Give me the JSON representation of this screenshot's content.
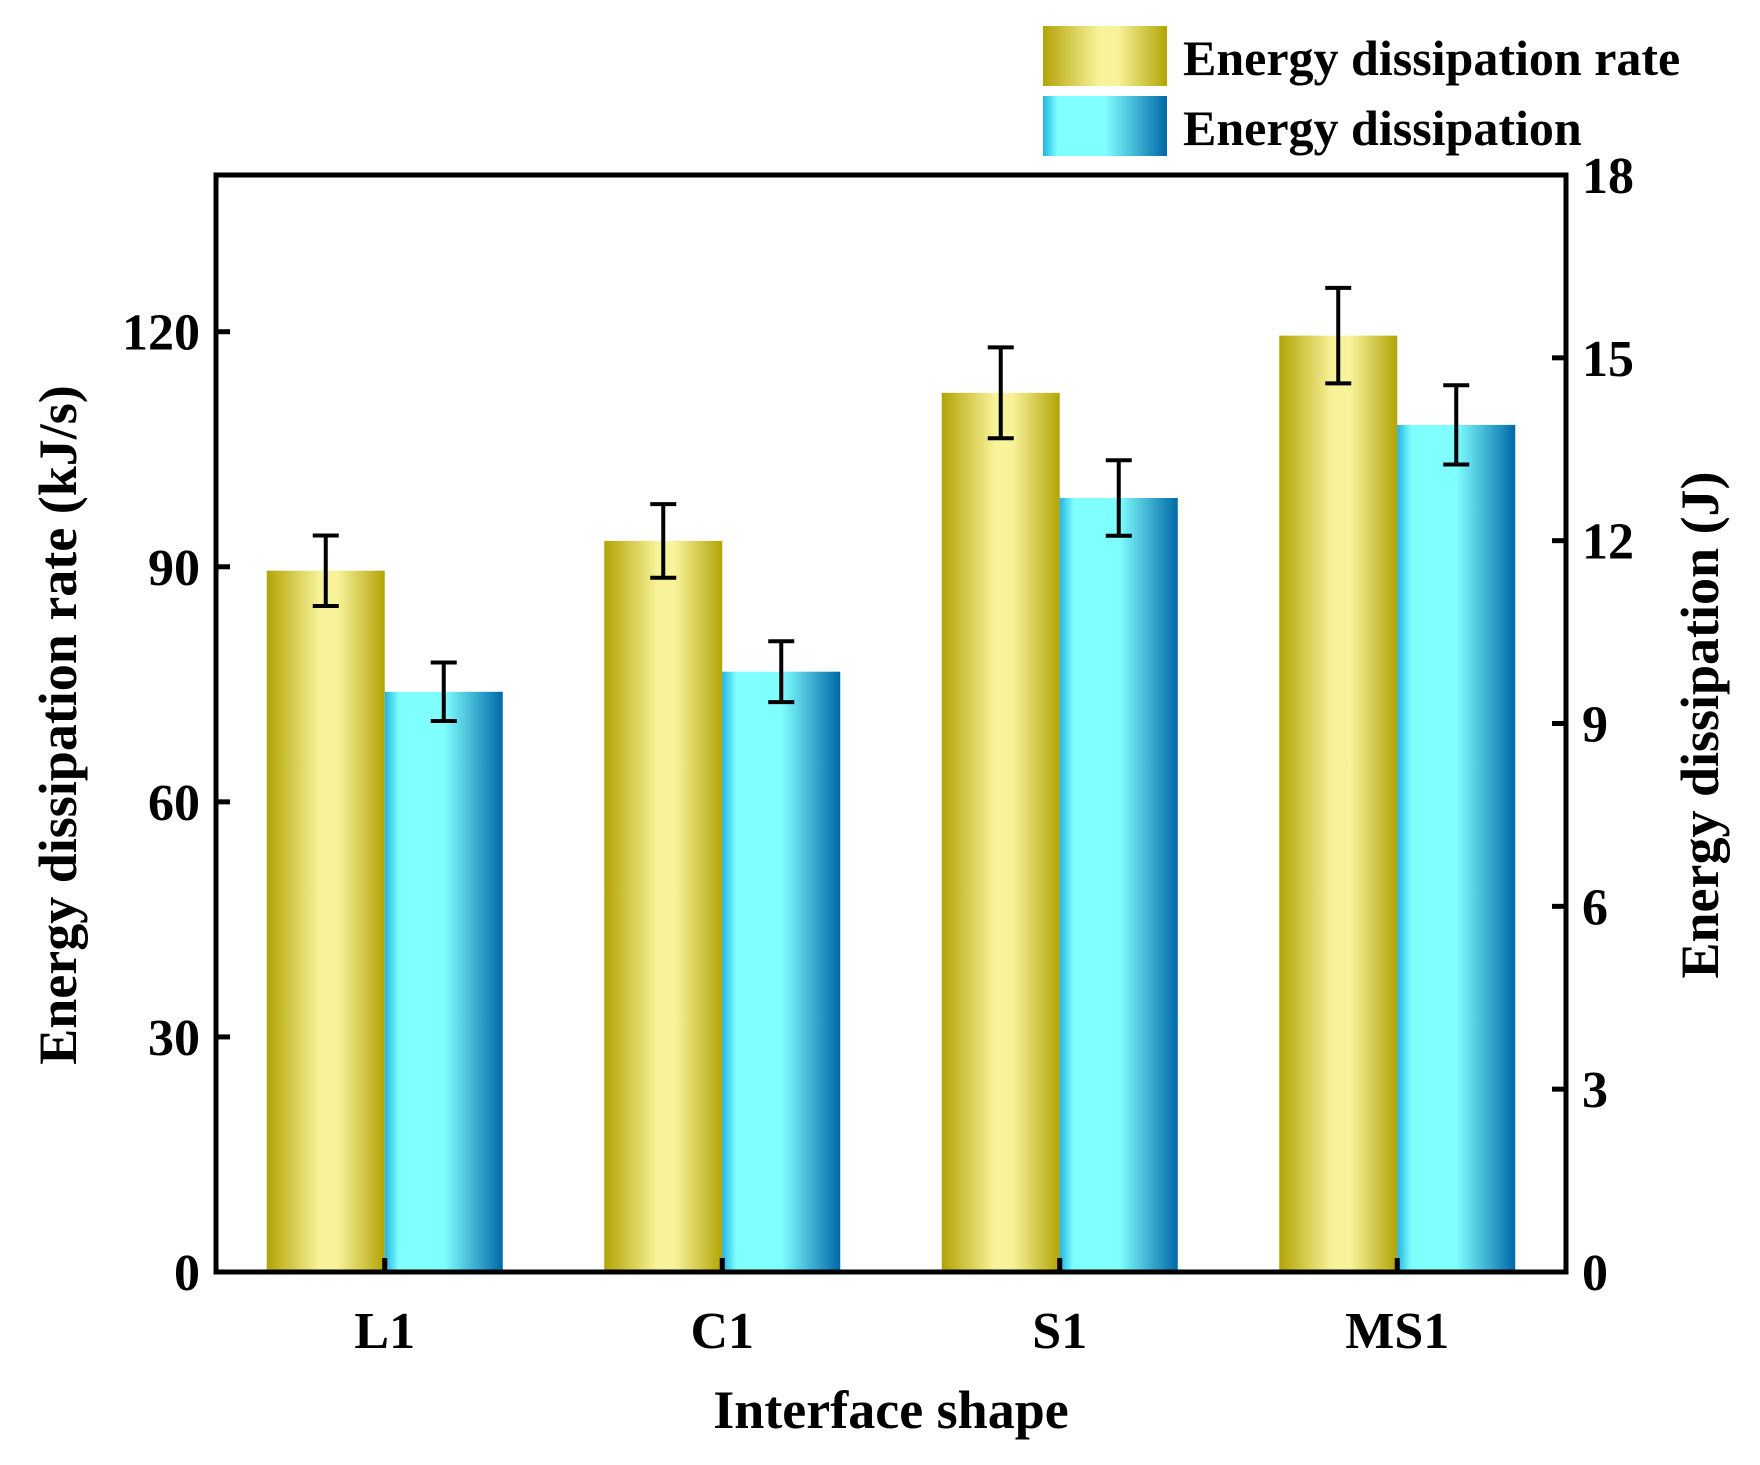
{
  "chart_data": {
    "type": "bar",
    "xlabel": "Interface shape",
    "ylabel_left": "Energy dissipation rate (kJ/s)",
    "ylabel_right": "Energy dissipation (J)",
    "categories": [
      "L1",
      "C1",
      "S1",
      "MS1"
    ],
    "ylim_left": [
      0,
      140
    ],
    "yticks_left": [
      0,
      30,
      60,
      90,
      120
    ],
    "ylim_right": [
      0,
      18
    ],
    "yticks_right": [
      0,
      3,
      6,
      9,
      12,
      15,
      18
    ],
    "legend_position": "top-right",
    "series": [
      {
        "name": "Energy dissipation rate",
        "axis": "left",
        "values": [
          89.5,
          93.3,
          112.2,
          119.5
        ],
        "errors": [
          4.5,
          4.7,
          5.8,
          6.1
        ],
        "colors": {
          "edge": "#b2a405",
          "mid": "#f8f39a"
        }
      },
      {
        "name": "Energy dissipation",
        "axis": "right",
        "values": [
          9.52,
          9.85,
          12.7,
          13.9
        ],
        "errors": [
          0.48,
          0.5,
          0.62,
          0.65
        ],
        "colors": {
          "light": "#80ffff",
          "dark": "#0068a8"
        }
      }
    ]
  }
}
